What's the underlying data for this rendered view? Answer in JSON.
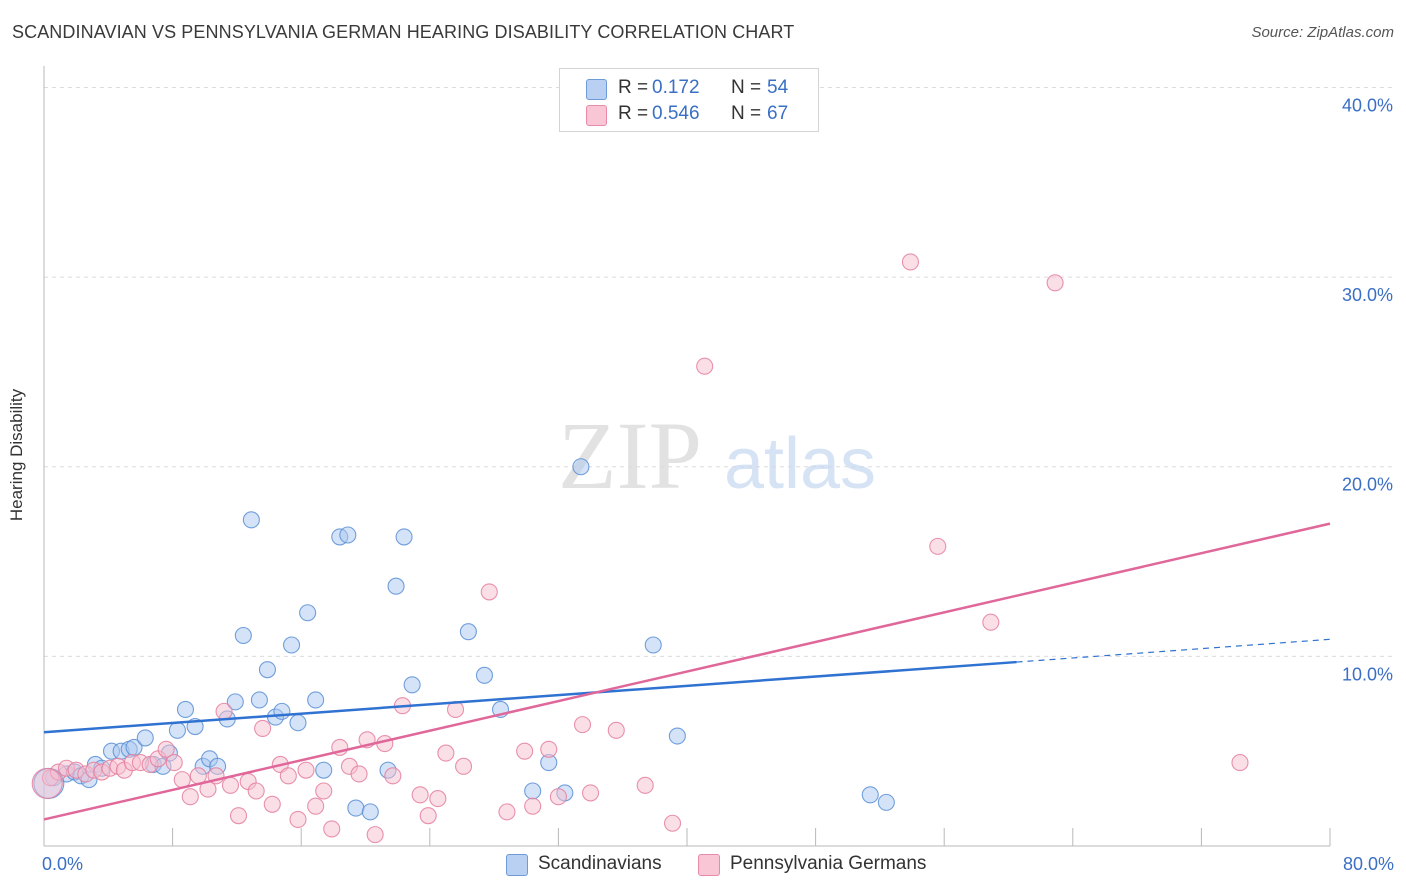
{
  "title": "SCANDINAVIAN VS PENNSYLVANIA GERMAN HEARING DISABILITY CORRELATION CHART",
  "source": "Source: ZipAtlas.com",
  "watermark": {
    "zip": "ZIP",
    "atlas": "atlas"
  },
  "legend_top": {
    "r_label": "R =",
    "n_label": "N =",
    "rows": [
      {
        "r": "0.172",
        "n": "54",
        "fill": "#b9d0f2",
        "stroke": "#6d9ad8"
      },
      {
        "r": "0.546",
        "n": "67",
        "fill": "#f9c6d6",
        "stroke": "#e88aa8"
      }
    ]
  },
  "colors": {
    "blue_fill": "#a9c7f0",
    "blue_stroke": "#5b8fd6",
    "blue_line": "#2f72d1",
    "pink_fill": "#f7bfd0",
    "pink_stroke": "#e47f9f",
    "pink_line": "#e0679a",
    "tick_label": "#3a6fc4",
    "grid": "#dcdcdc"
  },
  "chart_data": {
    "type": "scatter",
    "title": "SCANDINAVIAN VS PENNSYLVANIA GERMAN HEARING DISABILITY CORRELATION CHART",
    "xlabel": "",
    "ylabel": "Hearing Disability",
    "xlim": [
      0,
      80
    ],
    "ylim": [
      0,
      40.5
    ],
    "x_tick_labels": [
      {
        "value": 0,
        "label": "0.0%"
      },
      {
        "value": 80,
        "label": "80.0%"
      }
    ],
    "y_tick_labels": [
      {
        "value": 10,
        "label": "10.0%"
      },
      {
        "value": 20,
        "label": "20.0%"
      },
      {
        "value": 30,
        "label": "30.0%"
      },
      {
        "value": 40,
        "label": "40.0%"
      }
    ],
    "x_minor_ticks": [
      8,
      16,
      24,
      32,
      40,
      48,
      56,
      64,
      72,
      80
    ],
    "grid": true,
    "legend_position": "bottom-center",
    "series": [
      {
        "name": "Scandinavians",
        "r": 0.172,
        "n": 54,
        "trend": {
          "x0": 0,
          "y0": 6.0,
          "x1": 60.5,
          "y1": 9.7,
          "dash_x1": 80,
          "dash_y1": 10.9
        },
        "points": [
          [
            0.6,
            3.6
          ],
          [
            1.4,
            3.8
          ],
          [
            1.9,
            3.9
          ],
          [
            2.3,
            3.7
          ],
          [
            2.8,
            3.5
          ],
          [
            3.2,
            4.3
          ],
          [
            3.6,
            4.1
          ],
          [
            4.2,
            5.0
          ],
          [
            4.8,
            5.0
          ],
          [
            5.3,
            5.1
          ],
          [
            5.6,
            5.2
          ],
          [
            6.3,
            5.7
          ],
          [
            6.8,
            4.3
          ],
          [
            7.4,
            4.2
          ],
          [
            7.8,
            4.9
          ],
          [
            8.3,
            6.1
          ],
          [
            8.8,
            7.2
          ],
          [
            9.4,
            6.3
          ],
          [
            9.9,
            4.2
          ],
          [
            10.3,
            4.6
          ],
          [
            10.8,
            4.2
          ],
          [
            11.4,
            6.7
          ],
          [
            11.9,
            7.6
          ],
          [
            12.4,
            11.1
          ],
          [
            12.9,
            17.2
          ],
          [
            13.4,
            7.7
          ],
          [
            13.9,
            9.3
          ],
          [
            14.4,
            6.8
          ],
          [
            14.8,
            7.1
          ],
          [
            15.4,
            10.6
          ],
          [
            15.8,
            6.5
          ],
          [
            16.4,
            12.3
          ],
          [
            16.9,
            7.7
          ],
          [
            17.4,
            4.0
          ],
          [
            18.4,
            16.3
          ],
          [
            18.9,
            16.4
          ],
          [
            19.4,
            2.0
          ],
          [
            20.3,
            1.8
          ],
          [
            21.4,
            4.0
          ],
          [
            21.9,
            13.7
          ],
          [
            22.4,
            16.3
          ],
          [
            22.9,
            8.5
          ],
          [
            26.4,
            11.3
          ],
          [
            27.4,
            9.0
          ],
          [
            28.4,
            7.2
          ],
          [
            30.4,
            2.9
          ],
          [
            31.4,
            4.4
          ],
          [
            32.4,
            2.8
          ],
          [
            33.4,
            20.0
          ],
          [
            37.9,
            10.6
          ],
          [
            39.4,
            5.8
          ],
          [
            51.4,
            2.7
          ],
          [
            52.4,
            2.3
          ],
          [
            0.3,
            3.3
          ]
        ]
      },
      {
        "name": "Pennsylvania Germans",
        "r": 0.546,
        "n": 67,
        "trend": {
          "x0": 0,
          "y0": 1.4,
          "x1": 80,
          "y1": 17.0
        },
        "points": [
          [
            0.4,
            3.6
          ],
          [
            0.9,
            3.9
          ],
          [
            1.4,
            4.1
          ],
          [
            2.0,
            4.0
          ],
          [
            2.6,
            3.8
          ],
          [
            3.1,
            4.0
          ],
          [
            3.6,
            3.9
          ],
          [
            4.1,
            4.1
          ],
          [
            4.6,
            4.2
          ],
          [
            5.0,
            4.0
          ],
          [
            5.5,
            4.4
          ],
          [
            6.0,
            4.4
          ],
          [
            6.6,
            4.3
          ],
          [
            7.1,
            4.6
          ],
          [
            7.6,
            5.1
          ],
          [
            8.1,
            4.4
          ],
          [
            8.6,
            3.5
          ],
          [
            9.1,
            2.6
          ],
          [
            9.6,
            3.7
          ],
          [
            10.2,
            3.0
          ],
          [
            10.7,
            3.7
          ],
          [
            11.2,
            7.1
          ],
          [
            11.6,
            3.2
          ],
          [
            12.1,
            1.6
          ],
          [
            12.7,
            3.4
          ],
          [
            13.2,
            2.9
          ],
          [
            13.6,
            6.2
          ],
          [
            14.2,
            2.2
          ],
          [
            14.7,
            4.3
          ],
          [
            15.2,
            3.7
          ],
          [
            15.8,
            1.4
          ],
          [
            16.3,
            4.0
          ],
          [
            16.9,
            2.1
          ],
          [
            17.4,
            2.9
          ],
          [
            17.9,
            0.9
          ],
          [
            18.4,
            5.2
          ],
          [
            19.0,
            4.2
          ],
          [
            19.6,
            3.8
          ],
          [
            20.1,
            5.6
          ],
          [
            20.6,
            0.6
          ],
          [
            21.2,
            5.4
          ],
          [
            21.7,
            3.7
          ],
          [
            22.3,
            7.4
          ],
          [
            23.4,
            2.7
          ],
          [
            23.9,
            1.6
          ],
          [
            24.5,
            2.5
          ],
          [
            25.0,
            4.9
          ],
          [
            25.6,
            7.2
          ],
          [
            26.1,
            4.2
          ],
          [
            27.7,
            13.4
          ],
          [
            28.8,
            1.8
          ],
          [
            29.9,
            5.0
          ],
          [
            30.4,
            2.1
          ],
          [
            31.4,
            5.1
          ],
          [
            32.0,
            2.6
          ],
          [
            33.5,
            6.4
          ],
          [
            34.0,
            2.8
          ],
          [
            35.6,
            6.1
          ],
          [
            37.4,
            3.2
          ],
          [
            39.1,
            1.2
          ],
          [
            41.1,
            25.3
          ],
          [
            53.9,
            30.8
          ],
          [
            55.6,
            15.8
          ],
          [
            58.9,
            11.8
          ],
          [
            62.9,
            29.7
          ],
          [
            74.4,
            4.4
          ],
          [
            0.2,
            3.3
          ]
        ]
      }
    ]
  }
}
